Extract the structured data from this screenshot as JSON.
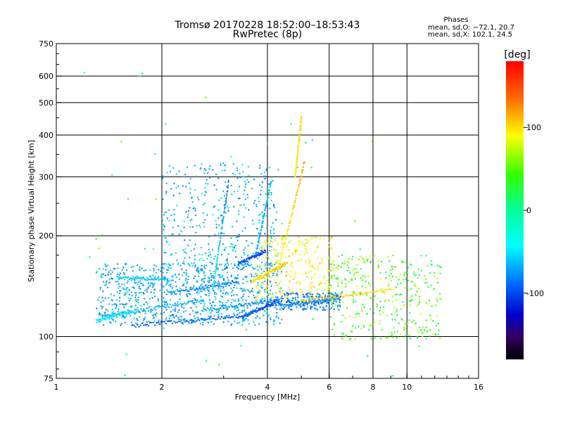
{
  "chart_data": {
    "type": "scatter",
    "title": "Tromsø 20170228 18:52:00–18:53:43",
    "subtitle": "RwPretec (8p)",
    "xlabel": "Frequency [MHz]",
    "ylabel": "Stationary phase Virtual Height [km]",
    "x_scale": "log",
    "y_scale": "log",
    "xlim": [
      1,
      16
    ],
    "ylim": [
      75,
      750
    ],
    "x_ticks": [
      1,
      2,
      4,
      6,
      8,
      10,
      16
    ],
    "y_ticks": [
      75,
      100,
      200,
      300,
      400,
      500,
      600,
      750
    ],
    "x_grid": [
      2,
      4,
      6,
      8,
      10
    ],
    "y_grid": [
      100,
      200,
      300,
      400,
      500,
      600
    ],
    "grid": true,
    "stats": {
      "heading": "Phases",
      "line_o": "mean, sd,O: −72.1, 20.7",
      "line_x": "mean, sd,X: 102.1, 24.5"
    },
    "colorbar": {
      "label": "[deg]",
      "range": [
        -180,
        180
      ],
      "ticks": [
        100,
        0,
        -100
      ]
    },
    "traces": [
      {
        "x0": 1.65,
        "x1": 3.4,
        "h0": 108,
        "h1": 115,
        "c0": -110,
        "c1": -110
      },
      {
        "x0": 3.4,
        "x1": 4.2,
        "h0": 115,
        "h1": 126,
        "c0": -105,
        "c1": -120
      },
      {
        "x0": 1.35,
        "x1": 2.6,
        "h0": 115,
        "h1": 128,
        "c0": -85,
        "c1": -80
      },
      {
        "x0": 2.6,
        "x1": 4.3,
        "h0": 120,
        "h1": 128,
        "c0": -80,
        "c1": -100
      },
      {
        "x0": 1.5,
        "x1": 2.1,
        "h0": 150,
        "h1": 148,
        "c0": -70,
        "c1": -75
      },
      {
        "x0": 2.1,
        "x1": 3.3,
        "h0": 135,
        "h1": 145,
        "c0": -90,
        "c1": -100
      },
      {
        "x0": 3.3,
        "x1": 3.95,
        "h0": 165,
        "h1": 180,
        "c0": -110,
        "c1": -120
      },
      {
        "x0": 3.6,
        "x1": 4.5,
        "h0": 145,
        "h1": 165,
        "c0": 110,
        "c1": 120
      },
      {
        "x0": 4.3,
        "x1": 5.1,
        "h0": 160,
        "h1": 330,
        "c0": 100,
        "c1": 130
      },
      {
        "x0": 4.8,
        "x1": 5.0,
        "h0": 300,
        "h1": 450,
        "c0": 105,
        "c1": 115
      },
      {
        "x0": 4.4,
        "x1": 6.4,
        "h0": 124,
        "h1": 130,
        "c0": -95,
        "c1": -90
      },
      {
        "x0": 2.8,
        "x1": 3.1,
        "h0": 140,
        "h1": 290,
        "c0": -60,
        "c1": -100
      },
      {
        "x0": 3.7,
        "x1": 4.1,
        "h0": 175,
        "h1": 290,
        "c0": -85,
        "c1": -75
      },
      {
        "x0": 5.0,
        "x1": 9.0,
        "h0": 128,
        "h1": 138,
        "c0": 120,
        "c1": 110
      },
      {
        "x0": 1.3,
        "x1": 1.7,
        "h0": 112,
        "h1": 120,
        "c0": -60,
        "c1": -70
      }
    ],
    "clouds": [
      {
        "xa": 1.3,
        "xb": 4.4,
        "ha": 108,
        "hb": 165,
        "c": -85,
        "cs": 30,
        "n": 900
      },
      {
        "xa": 2.0,
        "xb": 4.3,
        "ha": 160,
        "hb": 330,
        "c": -80,
        "cs": 35,
        "n": 380
      },
      {
        "xa": 3.7,
        "xb": 6.2,
        "ha": 125,
        "hb": 200,
        "c": 100,
        "cs": 40,
        "n": 280
      },
      {
        "xa": 4.2,
        "xb": 6.5,
        "ha": 120,
        "hb": 135,
        "c": -100,
        "cs": 25,
        "n": 220
      },
      {
        "xa": 6.0,
        "xb": 12.5,
        "ha": 98,
        "hb": 175,
        "c": 40,
        "cs": 110,
        "n": 360
      },
      {
        "xa": 1.0,
        "xb": 12.0,
        "ha": 75,
        "hb": 650,
        "c": 0,
        "cs": 110,
        "n": 60
      }
    ]
  }
}
